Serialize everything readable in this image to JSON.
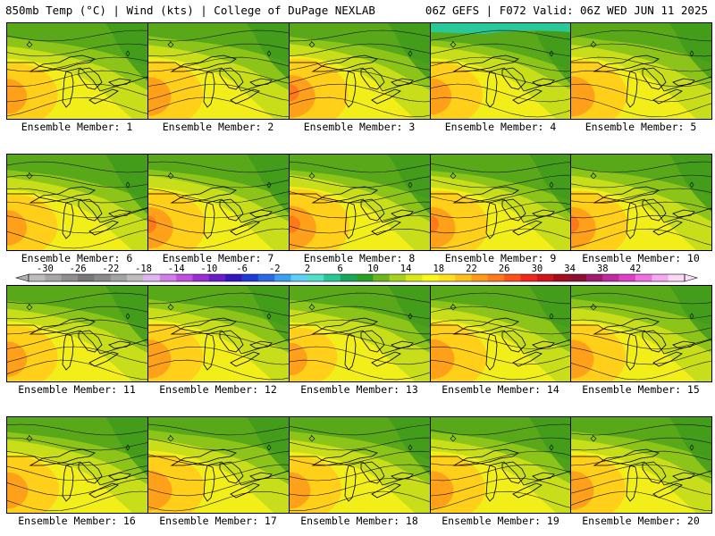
{
  "header": {
    "left": "850mb Temp (°C) | Wind (kts) | College of DuPage NEXLAB",
    "right": "06Z GEFS | F072 Valid: 06Z WED JUN 11 2025"
  },
  "panel_label_prefix": "Ensemble Member: ",
  "members": [
    {
      "id": 1,
      "label": "Ensemble Member: 1",
      "warm": 0.55,
      "cool": 0.25
    },
    {
      "id": 2,
      "label": "Ensemble Member: 2",
      "warm": 0.7,
      "cool": 0.15
    },
    {
      "id": 3,
      "label": "Ensemble Member: 3",
      "warm": 0.85,
      "cool": 0.2
    },
    {
      "id": 4,
      "label": "Ensemble Member: 4",
      "warm": 0.6,
      "cool": 0.45
    },
    {
      "id": 5,
      "label": "Ensemble Member: 5",
      "warm": 0.75,
      "cool": 0.15
    },
    {
      "id": 6,
      "label": "Ensemble Member: 6",
      "warm": 0.55,
      "cool": 0.35
    },
    {
      "id": 7,
      "label": "Ensemble Member: 7",
      "warm": 0.8,
      "cool": 0.3
    },
    {
      "id": 8,
      "label": "Ensemble Member: 8",
      "warm": 0.9,
      "cool": 0.35
    },
    {
      "id": 9,
      "label": "Ensemble Member: 9",
      "warm": 0.8,
      "cool": 0.4
    },
    {
      "id": 10,
      "label": "Ensemble Member: 10",
      "warm": 0.8,
      "cool": 0.2
    },
    {
      "id": 11,
      "label": "Ensemble Member: 11",
      "warm": 0.55,
      "cool": 0.3
    },
    {
      "id": 12,
      "label": "Ensemble Member: 12",
      "warm": 0.7,
      "cool": 0.2
    },
    {
      "id": 13,
      "label": "Ensemble Member: 13",
      "warm": 0.45,
      "cool": 0.25
    },
    {
      "id": 14,
      "label": "Ensemble Member: 14",
      "warm": 0.75,
      "cool": 0.25
    },
    {
      "id": 15,
      "label": "Ensemble Member: 15",
      "warm": 0.7,
      "cool": 0.15
    },
    {
      "id": 16,
      "label": "Ensemble Member: 16",
      "warm": 0.6,
      "cool": 0.3
    },
    {
      "id": 17,
      "label": "Ensemble Member: 17",
      "warm": 0.75,
      "cool": 0.15
    },
    {
      "id": 18,
      "label": "Ensemble Member: 18",
      "warm": 0.6,
      "cool": 0.25
    },
    {
      "id": 19,
      "label": "Ensemble Member: 19",
      "warm": 0.7,
      "cool": 0.3
    },
    {
      "id": 20,
      "label": "Ensemble Member: 20",
      "warm": 0.7,
      "cool": 0.25
    }
  ],
  "colorbar": {
    "ticks": [
      "-30",
      "-26",
      "-22",
      "-18",
      "-14",
      "-10",
      "-6",
      "-2",
      "2",
      "6",
      "10",
      "14",
      "18",
      "22",
      "26",
      "30",
      "34",
      "38",
      "42"
    ],
    "colors": [
      "#bdbdbd",
      "#a6a6a6",
      "#8f8f8f",
      "#787878",
      "#8a8a8a",
      "#a3a3a3",
      "#bdbdbd",
      "#e0b6f0",
      "#d27ee8",
      "#c24fe0",
      "#9a2ed4",
      "#6a1cc8",
      "#3416c0",
      "#1f3bd6",
      "#2a6ae6",
      "#3aa0f0",
      "#5fd0f5",
      "#4fe0c8",
      "#28c896",
      "#17a85a",
      "#2aa028",
      "#6cb81c",
      "#a8d21a",
      "#d9e81a",
      "#f8f81a",
      "#ffe01a",
      "#ffc01a",
      "#ff9a1a",
      "#ff7a1a",
      "#ff501a",
      "#f0281a",
      "#d0141a",
      "#a80c1a",
      "#8c1030",
      "#a01a70",
      "#c02aa0",
      "#e040c8",
      "#f070e0",
      "#f8a8f0",
      "#fcd8f8"
    ]
  }
}
